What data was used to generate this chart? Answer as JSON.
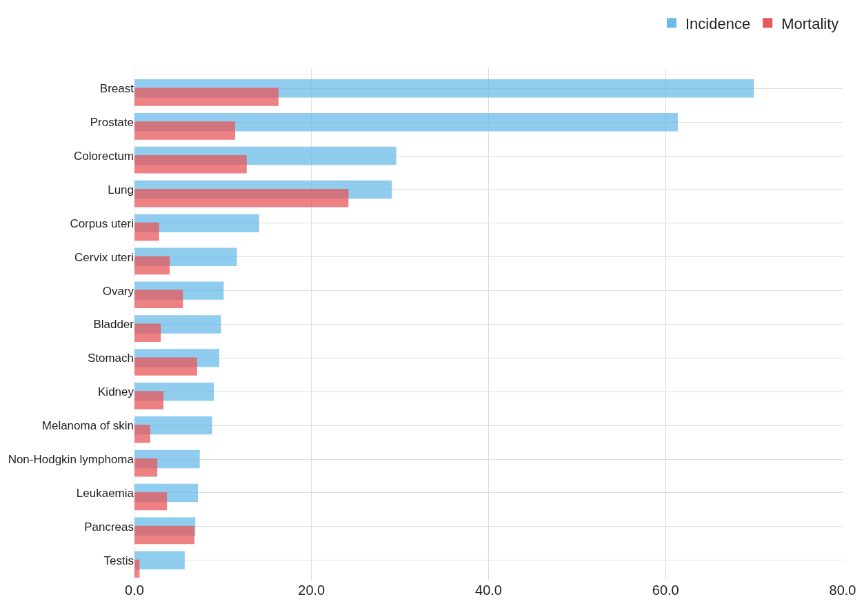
{
  "chart_data": {
    "type": "bar",
    "orientation": "horizontal",
    "categories": [
      "Breast",
      "Prostate",
      "Colorectum",
      "Lung",
      "Corpus uteri",
      "Cervix uteri",
      "Ovary",
      "Bladder",
      "Stomach",
      "Kidney",
      "Melanoma of skin",
      "Non-Hodgkin lymphoma",
      "Leukaemia",
      "Pancreas",
      "Testis"
    ],
    "series": [
      {
        "name": "Incidence",
        "color": "#6bbbe8",
        "values": [
          69.9,
          61.3,
          29.5,
          29.0,
          14.0,
          11.5,
          10.0,
          9.7,
          9.5,
          8.9,
          8.7,
          7.3,
          7.1,
          6.8,
          5.6
        ]
      },
      {
        "name": "Mortality",
        "color": "#e8575a",
        "values": [
          16.2,
          11.3,
          12.6,
          24.1,
          2.7,
          3.9,
          5.4,
          2.9,
          7.0,
          3.2,
          1.7,
          2.5,
          3.6,
          6.7,
          0.5
        ]
      }
    ],
    "xlim": [
      0,
      80
    ],
    "xticks": [
      {
        "value": 0,
        "label": "0.0"
      },
      {
        "value": 20,
        "label": "20.0"
      },
      {
        "value": 40,
        "label": "40.0"
      },
      {
        "value": 60,
        "label": "60.0"
      },
      {
        "value": 80,
        "label": "80.0"
      }
    ],
    "grid": true,
    "legend": "top right"
  }
}
